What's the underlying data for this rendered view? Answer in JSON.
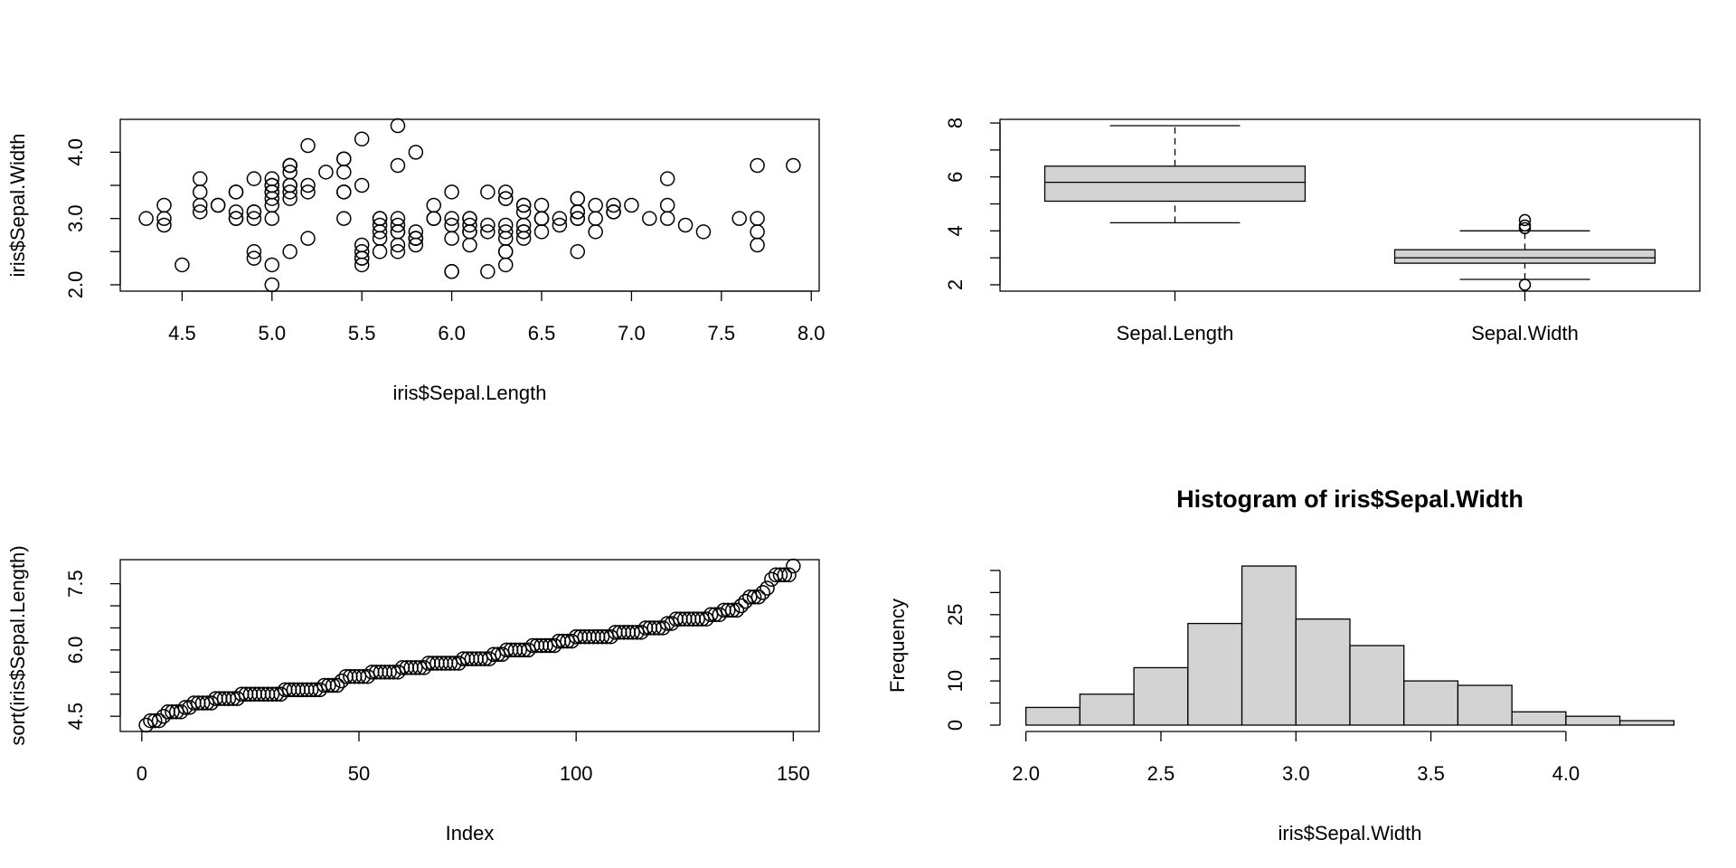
{
  "chart_data": [
    {
      "type": "scatter",
      "x_label": "iris$Sepal.Length",
      "y_label": "iris$Sepal.Width",
      "frame": true,
      "x": [
        5.1,
        4.9,
        4.7,
        4.6,
        5,
        5.4,
        4.6,
        5,
        4.4,
        4.9,
        5.4,
        4.8,
        4.8,
        4.3,
        5.8,
        5.7,
        5.4,
        5.1,
        5.7,
        5.1,
        5.4,
        5.1,
        4.6,
        5.1,
        4.8,
        5,
        5,
        5.2,
        5.2,
        4.7,
        4.8,
        5.4,
        5.2,
        5.5,
        4.9,
        5,
        5.5,
        4.9,
        4.4,
        5.1,
        5,
        4.5,
        4.4,
        5,
        5.1,
        4.8,
        5.1,
        4.6,
        5.3,
        5,
        7,
        6.4,
        6.9,
        5.5,
        6.5,
        5.7,
        6.3,
        4.9,
        6.6,
        5.2,
        5,
        5.9,
        6,
        6.1,
        5.6,
        6.7,
        5.6,
        5.8,
        6.2,
        5.6,
        5.9,
        6.1,
        6.3,
        6.1,
        6.4,
        6.6,
        6.8,
        6.7,
        6,
        5.7,
        5.5,
        5.5,
        5.8,
        6,
        5.4,
        6,
        6.7,
        6.3,
        5.6,
        5.5,
        5.5,
        6.1,
        5.8,
        5,
        5.6,
        5.7,
        5.7,
        6.2,
        5.1,
        5.7,
        6.3,
        5.8,
        7.1,
        6.3,
        6.5,
        7.6,
        4.9,
        7.3,
        6.7,
        7.2,
        6.5,
        6.4,
        6.8,
        5.7,
        5.8,
        6.4,
        6.5,
        7.7,
        7.7,
        6,
        6.9,
        5.6,
        7.7,
        6.3,
        6.7,
        7.2,
        6.2,
        6.1,
        6.4,
        7.2,
        7.4,
        7.9,
        6.4,
        6.3,
        6.1,
        7.7,
        6.3,
        6.4,
        6,
        6.9,
        6.7,
        6.9,
        5.8,
        6.8,
        6.7,
        6.7,
        6.3,
        6.5,
        6.2,
        5.9
      ],
      "y": [
        3.5,
        3,
        3.2,
        3.1,
        3.6,
        3.9,
        3.4,
        3.4,
        2.9,
        3.1,
        3.7,
        3.4,
        3,
        3,
        4,
        4.4,
        3.9,
        3.5,
        3.8,
        3.8,
        3.4,
        3.7,
        3.6,
        3.3,
        3.4,
        3,
        3.4,
        3.5,
        3.4,
        3.2,
        3.1,
        3.4,
        4.1,
        4.2,
        3.1,
        3.2,
        3.5,
        3.6,
        3,
        3.4,
        3.5,
        2.3,
        3.2,
        3.5,
        3.8,
        3,
        3.8,
        3.2,
        3.7,
        3.3,
        3.2,
        3.2,
        3.1,
        2.3,
        2.8,
        2.8,
        3.3,
        2.4,
        2.9,
        2.7,
        2,
        3,
        2.2,
        2.9,
        2.9,
        3.1,
        3,
        2.7,
        2.2,
        2.5,
        3.2,
        2.8,
        2.5,
        2.8,
        2.9,
        3,
        2.8,
        3,
        2.9,
        2.6,
        2.4,
        2.4,
        2.7,
        2.7,
        3,
        3.4,
        3.1,
        2.3,
        3,
        2.5,
        2.6,
        3,
        2.6,
        2.3,
        2.7,
        3,
        2.9,
        2.9,
        2.5,
        2.8,
        3.3,
        2.7,
        3,
        2.9,
        3,
        3,
        2.5,
        2.9,
        2.5,
        3.6,
        3.2,
        2.7,
        3,
        2.5,
        2.8,
        3.2,
        3,
        3.8,
        2.6,
        2.2,
        3.2,
        2.8,
        2.8,
        2.7,
        3.3,
        3.2,
        2.8,
        3,
        2.8,
        3,
        2.8,
        3.8,
        2.8,
        2.8,
        2.6,
        3,
        3.4,
        3.1,
        3,
        3.1,
        3.1,
        3.1,
        2.7,
        3.2,
        3.3,
        3,
        2.5,
        3,
        3.4,
        3
      ],
      "xlim": [
        4.156,
        8.044
      ],
      "ylim": [
        1.904,
        4.496
      ],
      "xticks": [
        4.5,
        {
          "value": 5,
          "label": "5.0"
        },
        5.5,
        {
          "value": 6,
          "label": "6.0"
        },
        6.5,
        {
          "value": 7,
          "label": "7.0"
        },
        7.5,
        {
          "value": 8,
          "label": "8.0"
        }
      ],
      "yticks": [
        {
          "value": 2,
          "label": "2.0"
        },
        {
          "value": 3,
          "label": "3.0"
        },
        {
          "value": 4,
          "label": "4.0"
        }
      ],
      "yticks_unlabeled": [
        2.5,
        3.5
      ]
    },
    {
      "type": "box",
      "frame": true,
      "color": "#d3d3d3",
      "categories": [
        "Sepal.Length",
        "Sepal.Width"
      ],
      "boxes": [
        {
          "min": 4.3,
          "q1": 5.1,
          "median": 5.8,
          "q3": 6.4,
          "max": 7.9,
          "outliers": []
        },
        {
          "min": 2.2,
          "q1": 2.8,
          "median": 3,
          "q3": 3.3,
          "max": 4,
          "outliers": [
            4.4,
            4.1,
            4.2,
            2
          ]
        }
      ],
      "ylim": [
        1.764,
        8.136
      ],
      "yticks": [
        2,
        4,
        6,
        8
      ],
      "yticks_unlabeled": [
        3,
        5,
        7
      ]
    },
    {
      "type": "scatter",
      "x_label": "Index",
      "y_label": "sort(iris$Sepal.Length)",
      "frame": true,
      "x": [
        1,
        2,
        3,
        4,
        5,
        6,
        7,
        8,
        9,
        10,
        11,
        12,
        13,
        14,
        15,
        16,
        17,
        18,
        19,
        20,
        21,
        22,
        23,
        24,
        25,
        26,
        27,
        28,
        29,
        30,
        31,
        32,
        33,
        34,
        35,
        36,
        37,
        38,
        39,
        40,
        41,
        42,
        43,
        44,
        45,
        46,
        47,
        48,
        49,
        50,
        51,
        52,
        53,
        54,
        55,
        56,
        57,
        58,
        59,
        60,
        61,
        62,
        63,
        64,
        65,
        66,
        67,
        68,
        69,
        70,
        71,
        72,
        73,
        74,
        75,
        76,
        77,
        78,
        79,
        80,
        81,
        82,
        83,
        84,
        85,
        86,
        87,
        88,
        89,
        90,
        91,
        92,
        93,
        94,
        95,
        96,
        97,
        98,
        99,
        100,
        101,
        102,
        103,
        104,
        105,
        106,
        107,
        108,
        109,
        110,
        111,
        112,
        113,
        114,
        115,
        116,
        117,
        118,
        119,
        120,
        121,
        122,
        123,
        124,
        125,
        126,
        127,
        128,
        129,
        130,
        131,
        132,
        133,
        134,
        135,
        136,
        137,
        138,
        139,
        140,
        141,
        142,
        143,
        144,
        145,
        146,
        147,
        148,
        149,
        150
      ],
      "y": [
        4.3,
        4.4,
        4.4,
        4.4,
        4.5,
        4.6,
        4.6,
        4.6,
        4.6,
        4.7,
        4.7,
        4.8,
        4.8,
        4.8,
        4.8,
        4.8,
        4.9,
        4.9,
        4.9,
        4.9,
        4.9,
        4.9,
        5,
        5,
        5,
        5,
        5,
        5,
        5,
        5,
        5,
        5,
        5.1,
        5.1,
        5.1,
        5.1,
        5.1,
        5.1,
        5.1,
        5.1,
        5.1,
        5.2,
        5.2,
        5.2,
        5.2,
        5.3,
        5.4,
        5.4,
        5.4,
        5.4,
        5.4,
        5.4,
        5.5,
        5.5,
        5.5,
        5.5,
        5.5,
        5.5,
        5.5,
        5.6,
        5.6,
        5.6,
        5.6,
        5.6,
        5.6,
        5.7,
        5.7,
        5.7,
        5.7,
        5.7,
        5.7,
        5.7,
        5.7,
        5.8,
        5.8,
        5.8,
        5.8,
        5.8,
        5.8,
        5.8,
        5.9,
        5.9,
        5.9,
        6,
        6,
        6,
        6,
        6,
        6,
        6.1,
        6.1,
        6.1,
        6.1,
        6.1,
        6.1,
        6.2,
        6.2,
        6.2,
        6.2,
        6.3,
        6.3,
        6.3,
        6.3,
        6.3,
        6.3,
        6.3,
        6.3,
        6.3,
        6.4,
        6.4,
        6.4,
        6.4,
        6.4,
        6.4,
        6.4,
        6.5,
        6.5,
        6.5,
        6.5,
        6.5,
        6.6,
        6.6,
        6.7,
        6.7,
        6.7,
        6.7,
        6.7,
        6.7,
        6.7,
        6.7,
        6.8,
        6.8,
        6.8,
        6.9,
        6.9,
        6.9,
        6.9,
        7,
        7.1,
        7.2,
        7.2,
        7.2,
        7.3,
        7.4,
        7.6,
        7.7,
        7.7,
        7.7,
        7.7,
        7.9
      ],
      "xlim": [
        -4.96,
        155.96
      ],
      "ylim": [
        4.156,
        8.044
      ],
      "xticks": [
        0,
        50,
        100,
        150
      ],
      "yticks": [
        4.5,
        {
          "value": 6,
          "label": "6.0"
        },
        7.5
      ],
      "yticks_unlabeled": [
        5,
        5.5,
        6.5,
        7
      ]
    },
    {
      "type": "hist",
      "title": "Histogram of iris$Sepal.Width",
      "x_label": "iris$Sepal.Width",
      "y_label": "Frequency",
      "frame": false,
      "color": "#d3d3d3",
      "bins": [
        2,
        2.2,
        2.4,
        2.6,
        2.8,
        3,
        3.2,
        3.4,
        3.6,
        3.8,
        4,
        4.2,
        4.4
      ],
      "counts": [
        4,
        7,
        13,
        23,
        36,
        24,
        18,
        10,
        9,
        3,
        2,
        1
      ],
      "xlim": [
        1.904,
        4.496
      ],
      "ylim": [
        -1.44,
        37.44
      ],
      "xticks": [
        {
          "value": 2,
          "label": "2.0"
        },
        2.5,
        {
          "value": 3,
          "label": "3.0"
        },
        3.5,
        {
          "value": 4,
          "label": "4.0"
        }
      ],
      "yticks": [
        0,
        10,
        25
      ],
      "yticks_unlabeled": [
        5,
        15,
        20,
        30,
        35
      ]
    }
  ]
}
